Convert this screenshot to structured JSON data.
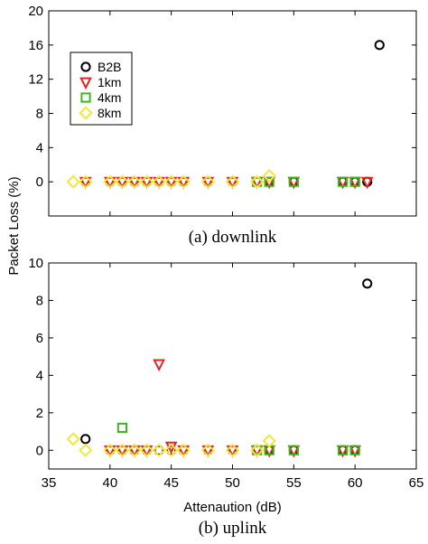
{
  "chart_data": [
    {
      "type": "scatter",
      "caption": "(a) downlink",
      "ylabel": "Packet Loss (%)",
      "xlabel": "",
      "xlim": [
        35,
        65
      ],
      "ylim": [
        -4,
        20
      ],
      "xticks": [
        35,
        40,
        45,
        50,
        55,
        60,
        65
      ],
      "yticks": [
        0,
        4,
        8,
        12,
        16,
        20
      ],
      "legend": "top-left",
      "series": [
        {
          "name": "B2B",
          "marker": "circle",
          "color": "#000000",
          "points": [
            [
              38,
              0
            ],
            [
              40,
              0
            ],
            [
              41,
              0
            ],
            [
              42,
              0
            ],
            [
              43,
              0
            ],
            [
              44,
              0
            ],
            [
              45,
              0
            ],
            [
              46,
              0
            ],
            [
              48,
              0
            ],
            [
              50,
              0
            ],
            [
              52,
              0
            ],
            [
              53,
              0
            ],
            [
              55,
              0
            ],
            [
              59,
              0
            ],
            [
              60,
              0
            ],
            [
              61,
              0
            ],
            [
              62,
              16
            ]
          ]
        },
        {
          "name": "1km",
          "marker": "triangle-down",
          "color": "#e8221e",
          "points": [
            [
              38,
              0
            ],
            [
              40,
              0
            ],
            [
              41,
              0
            ],
            [
              42,
              0
            ],
            [
              43,
              0
            ],
            [
              44,
              0
            ],
            [
              45,
              0
            ],
            [
              46,
              0
            ],
            [
              48,
              0
            ],
            [
              50,
              0
            ],
            [
              52,
              0
            ],
            [
              53,
              0
            ],
            [
              55,
              0
            ],
            [
              59,
              0
            ],
            [
              60,
              0
            ],
            [
              61,
              0
            ]
          ]
        },
        {
          "name": "4km",
          "marker": "square",
          "color": "#3ab81c",
          "points": [
            [
              52,
              0
            ],
            [
              53,
              0
            ],
            [
              55,
              0
            ],
            [
              59,
              0
            ],
            [
              60,
              0
            ]
          ]
        },
        {
          "name": "8km",
          "marker": "diamond",
          "color": "#f5e63a",
          "points": [
            [
              37,
              0
            ],
            [
              38,
              0
            ],
            [
              40,
              0
            ],
            [
              41,
              0
            ],
            [
              42,
              0
            ],
            [
              43,
              0
            ],
            [
              44,
              0
            ],
            [
              45,
              0
            ],
            [
              46,
              0
            ],
            [
              48,
              0
            ],
            [
              50,
              0
            ],
            [
              52,
              0
            ],
            [
              53,
              0.7
            ]
          ]
        }
      ]
    },
    {
      "type": "scatter",
      "caption": "(b) uplink",
      "ylabel": "",
      "xlabel": "Attenaution (dB)",
      "xlim": [
        35,
        65
      ],
      "ylim": [
        -1,
        10
      ],
      "xticks": [
        35,
        40,
        45,
        50,
        55,
        60,
        65
      ],
      "yticks": [
        0,
        2,
        4,
        6,
        8,
        10
      ],
      "legend": "",
      "series": [
        {
          "name": "B2B",
          "marker": "circle",
          "color": "#000000",
          "points": [
            [
              38,
              0.6
            ],
            [
              40,
              0
            ],
            [
              41,
              0
            ],
            [
              42,
              0
            ],
            [
              43,
              0
            ],
            [
              44,
              0
            ],
            [
              45,
              0
            ],
            [
              46,
              0
            ],
            [
              48,
              0
            ],
            [
              50,
              0
            ],
            [
              52,
              0
            ],
            [
              53,
              0
            ],
            [
              55,
              0
            ],
            [
              59,
              0
            ],
            [
              60,
              0
            ],
            [
              61,
              8.9
            ]
          ]
        },
        {
          "name": "1km",
          "marker": "triangle-down",
          "color": "#e8221e",
          "points": [
            [
              40,
              0
            ],
            [
              41,
              0
            ],
            [
              42,
              0
            ],
            [
              43,
              0
            ],
            [
              44,
              4.6
            ],
            [
              45,
              0.2
            ],
            [
              46,
              0
            ],
            [
              48,
              0
            ],
            [
              50,
              0
            ],
            [
              52,
              0
            ],
            [
              53,
              0
            ],
            [
              55,
              0
            ],
            [
              59,
              0
            ],
            [
              60,
              0
            ]
          ]
        },
        {
          "name": "4km",
          "marker": "square",
          "color": "#3ab81c",
          "points": [
            [
              41,
              1.2
            ],
            [
              52,
              0
            ],
            [
              53,
              0
            ],
            [
              55,
              0
            ],
            [
              59,
              0
            ],
            [
              60,
              0
            ]
          ]
        },
        {
          "name": "8km",
          "marker": "diamond",
          "color": "#f5e63a",
          "points": [
            [
              37,
              0.6
            ],
            [
              38,
              0
            ],
            [
              40,
              0
            ],
            [
              41,
              0
            ],
            [
              42,
              0
            ],
            [
              43,
              0
            ],
            [
              44,
              0
            ],
            [
              45,
              0
            ],
            [
              46,
              0
            ],
            [
              48,
              0
            ],
            [
              50,
              0
            ],
            [
              52,
              0
            ],
            [
              53,
              0.5
            ]
          ]
        }
      ]
    }
  ]
}
